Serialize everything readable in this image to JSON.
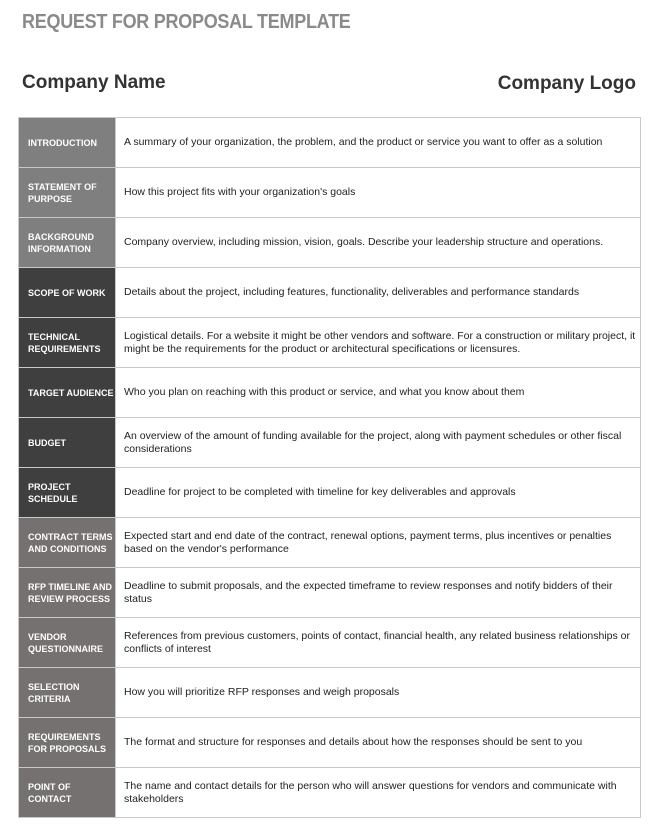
{
  "title": "REQUEST FOR PROPOSAL TEMPLATE",
  "company_name": "Company Name",
  "company_logo": "Company Logo",
  "colors": {
    "group1": "#7f7f7f",
    "group2": "#3f3f3f",
    "group3": "#767171"
  },
  "rows": [
    {
      "label": "INTRODUCTION",
      "text": "A summary of your organization, the problem, and the product or service you want to offer as a solution",
      "group": "g1"
    },
    {
      "label": "STATEMENT OF PURPOSE",
      "text": "How this project fits with your organization's goals",
      "group": "g1"
    },
    {
      "label": "BACKGROUND INFORMATION",
      "text": "Company overview, including mission, vision, goals. Describe your leadership structure and operations.",
      "group": "g1"
    },
    {
      "label": "SCOPE OF WORK",
      "text": "Details about the project, including features, functionality, deliverables and performance standards",
      "group": "g2"
    },
    {
      "label": "TECHNICAL REQUIREMENTS",
      "text": "Logistical details. For a website it might be other vendors and software. For a construction or military project, it might be the requirements for the product or architectural specifications or licensures.",
      "group": "g2"
    },
    {
      "label": "TARGET AUDIENCE",
      "text": "Who you plan on reaching with this product or service, and what you know about them",
      "group": "g2"
    },
    {
      "label": "BUDGET",
      "text": "An overview of the amount of funding available for the project, along with payment schedules or other fiscal considerations",
      "group": "g2"
    },
    {
      "label": "PROJECT SCHEDULE",
      "text": "Deadline for project to be completed with timeline for key deliverables and approvals",
      "group": "g2"
    },
    {
      "label": "CONTRACT TERMS AND CONDITIONS",
      "text": "Expected start and end date of the contract, renewal options, payment terms, plus incentives or penalties based on the vendor's performance",
      "group": "g3"
    },
    {
      "label": "RFP TIMELINE AND REVIEW PROCESS",
      "text": "Deadline to submit proposals, and the expected timeframe to review responses and notify bidders of their status",
      "group": "g3"
    },
    {
      "label": "VENDOR QUESTIONNAIRE",
      "text": "References from previous customers, points of contact, financial health, any related business relationships or conflicts of interest",
      "group": "g3"
    },
    {
      "label": "SELECTION CRITERIA",
      "text": "How you will prioritize RFP responses and weigh proposals",
      "group": "g3"
    },
    {
      "label": "REQUIREMENTS FOR PROPOSALS",
      "text": "The format and structure for responses and details about how the responses should be sent to you",
      "group": "g3"
    },
    {
      "label": "POINT OF CONTACT",
      "text": "The name and contact details for the person who will answer questions for vendors and communicate with stakeholders",
      "group": "g3"
    }
  ]
}
